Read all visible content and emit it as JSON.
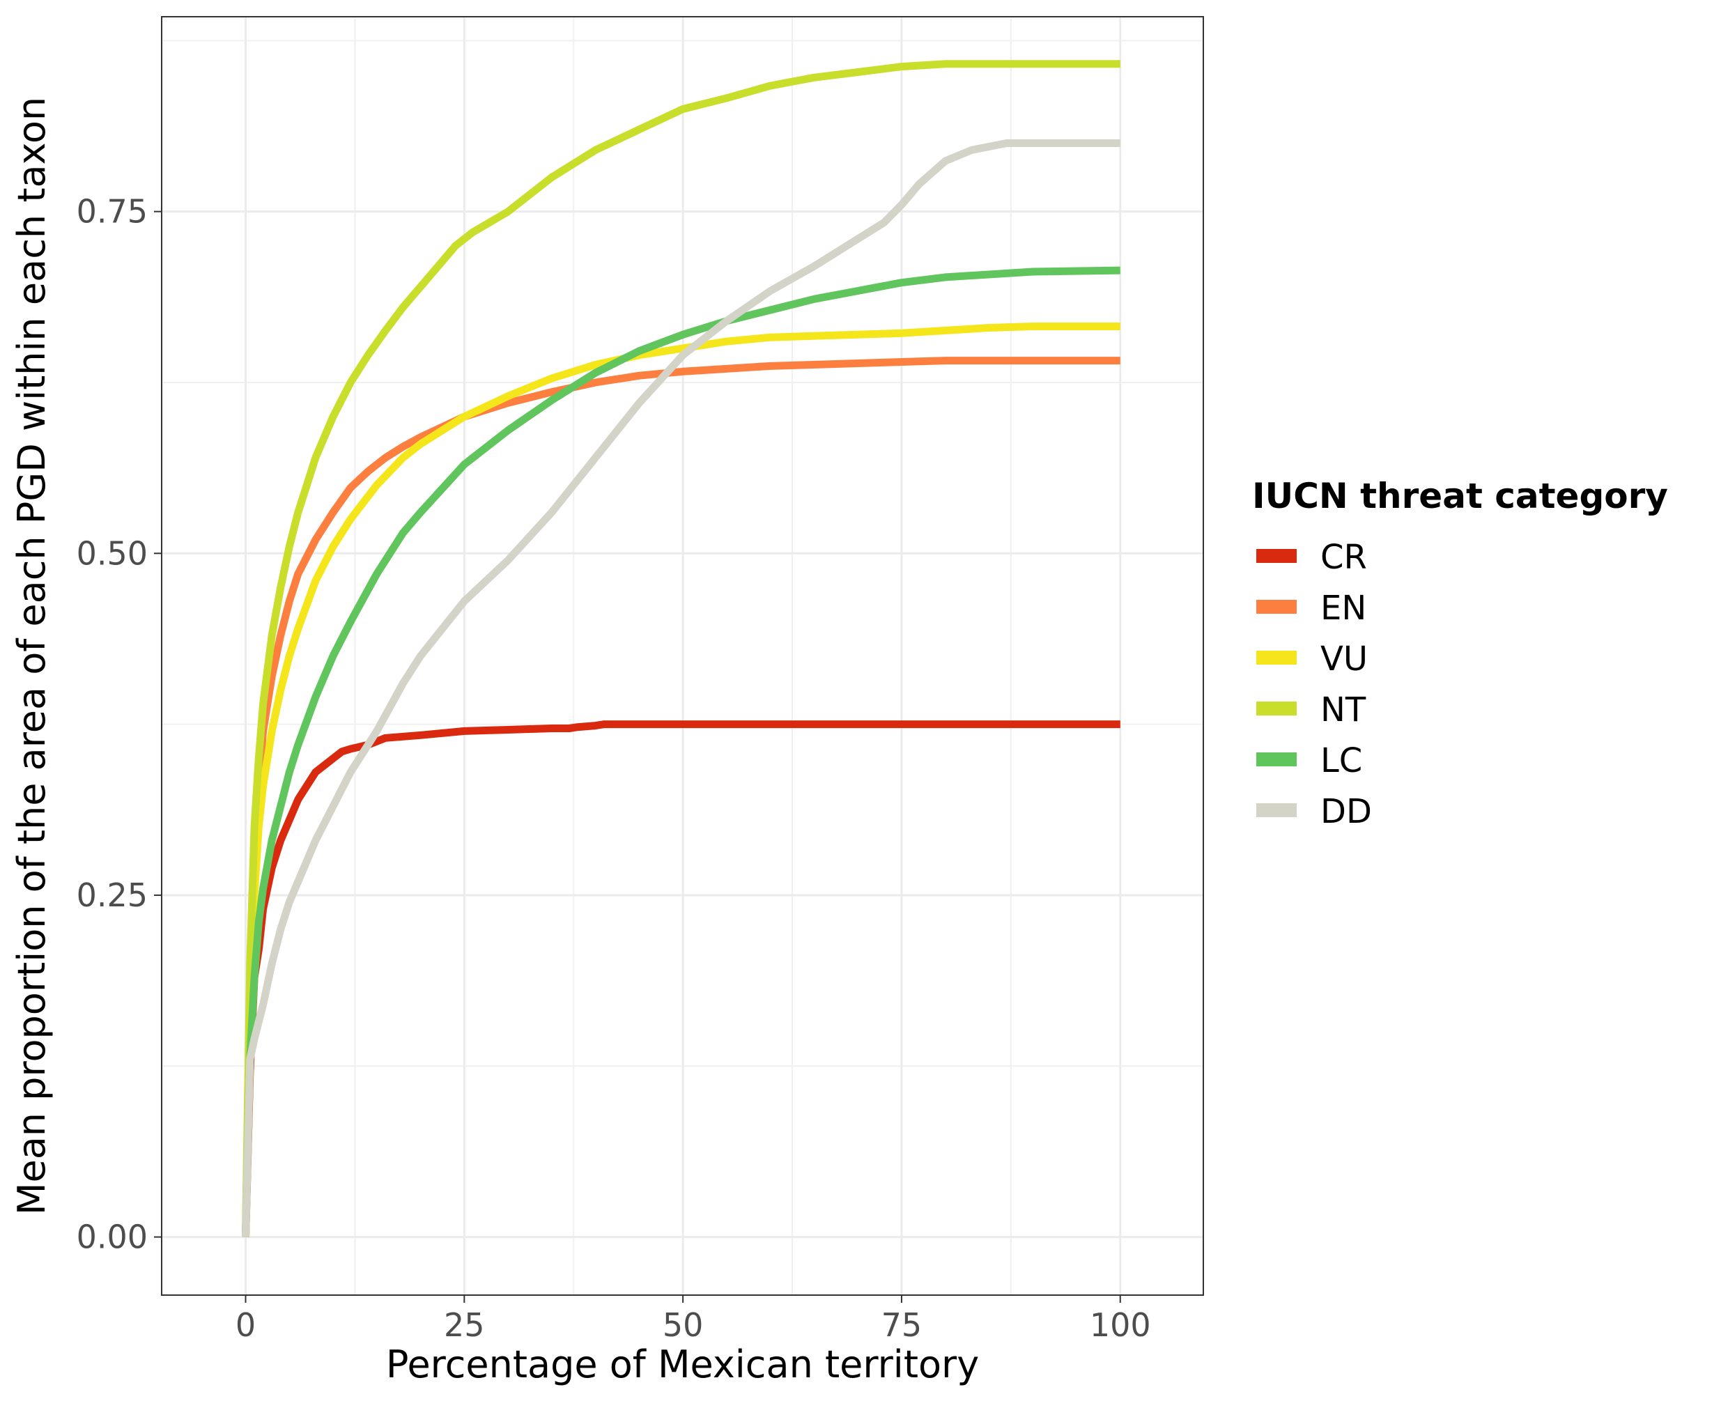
{
  "chart_data": {
    "type": "line",
    "title": "",
    "xlabel": "Percentage of Mexican territory",
    "ylabel": "Mean proportion of the area of each PGD within each taxon",
    "xlim": [
      -9.6,
      109.5
    ],
    "ylim": [
      -0.0425,
      0.8925
    ],
    "x_ticks": [
      0,
      25,
      50,
      75,
      100
    ],
    "x_tick_labels": [
      "0",
      "25",
      "50",
      "75",
      "100"
    ],
    "y_ticks": [
      0,
      0.25,
      0.5,
      0.75
    ],
    "y_tick_labels": [
      "0.00",
      "0.25",
      "0.50",
      "0.75"
    ],
    "grid": true,
    "legend": {
      "title": "IUCN threat category",
      "position": "right"
    },
    "series": [
      {
        "name": "CR",
        "color": "#D92A0F",
        "x": [
          0,
          0.5,
          1,
          1.5,
          2,
          2.5,
          3,
          4,
          5,
          6,
          7,
          8,
          9,
          10,
          11,
          12,
          14,
          16,
          20,
          25,
          30,
          35,
          37,
          38,
          40,
          41,
          50,
          60,
          75,
          100
        ],
        "y": [
          0,
          0.12,
          0.19,
          0.21,
          0.24,
          0.255,
          0.27,
          0.29,
          0.305,
          0.32,
          0.33,
          0.34,
          0.345,
          0.35,
          0.355,
          0.357,
          0.36,
          0.365,
          0.367,
          0.37,
          0.371,
          0.372,
          0.372,
          0.373,
          0.374,
          0.375,
          0.375,
          0.375,
          0.375,
          0.375
        ]
      },
      {
        "name": "EN",
        "color": "#FC7F3F",
        "x": [
          0,
          0.5,
          1,
          1.5,
          2,
          3,
          4,
          5,
          6,
          8,
          10,
          12,
          14,
          16,
          18,
          20,
          25,
          30,
          35,
          40,
          45,
          50,
          60,
          70,
          80,
          90,
          100
        ],
        "y": [
          0,
          0.17,
          0.27,
          0.33,
          0.37,
          0.41,
          0.44,
          0.465,
          0.485,
          0.51,
          0.53,
          0.548,
          0.56,
          0.57,
          0.578,
          0.585,
          0.6,
          0.61,
          0.618,
          0.625,
          0.63,
          0.633,
          0.637,
          0.639,
          0.641,
          0.641,
          0.641
        ]
      },
      {
        "name": "VU",
        "color": "#F5E61B",
        "x": [
          0,
          0.5,
          1,
          1.5,
          2,
          3,
          4,
          5,
          6,
          8,
          10,
          12,
          15,
          18,
          20,
          25,
          30,
          35,
          40,
          45,
          50,
          55,
          60,
          70,
          75,
          80,
          85,
          90,
          100
        ],
        "y": [
          0,
          0.16,
          0.25,
          0.3,
          0.33,
          0.37,
          0.4,
          0.425,
          0.445,
          0.48,
          0.505,
          0.525,
          0.55,
          0.57,
          0.58,
          0.6,
          0.615,
          0.628,
          0.638,
          0.645,
          0.65,
          0.655,
          0.658,
          0.66,
          0.661,
          0.663,
          0.665,
          0.666,
          0.666
        ]
      },
      {
        "name": "NT",
        "color": "#C8DE2A",
        "x": [
          0,
          0.5,
          1,
          1.5,
          2,
          3,
          4,
          5,
          6,
          7,
          8,
          10,
          12,
          14,
          16,
          18,
          20,
          22,
          24,
          26,
          30,
          35,
          40,
          45,
          50,
          55,
          60,
          65,
          70,
          75,
          80,
          90,
          100
        ],
        "y": [
          0,
          0.2,
          0.3,
          0.35,
          0.39,
          0.44,
          0.475,
          0.505,
          0.53,
          0.55,
          0.57,
          0.6,
          0.625,
          0.645,
          0.663,
          0.68,
          0.695,
          0.71,
          0.725,
          0.735,
          0.75,
          0.775,
          0.795,
          0.81,
          0.825,
          0.833,
          0.842,
          0.848,
          0.852,
          0.856,
          0.858,
          0.858,
          0.858
        ]
      },
      {
        "name": "LC",
        "color": "#60C55D",
        "x": [
          0,
          0.5,
          1,
          1.5,
          2,
          3,
          4,
          5,
          6,
          8,
          10,
          12,
          15,
          18,
          20,
          25,
          30,
          35,
          40,
          45,
          50,
          55,
          60,
          65,
          70,
          75,
          80,
          90,
          100
        ],
        "y": [
          0,
          0.13,
          0.19,
          0.23,
          0.255,
          0.29,
          0.315,
          0.34,
          0.36,
          0.395,
          0.425,
          0.45,
          0.485,
          0.515,
          0.53,
          0.565,
          0.59,
          0.612,
          0.632,
          0.648,
          0.66,
          0.67,
          0.678,
          0.686,
          0.692,
          0.698,
          0.702,
          0.706,
          0.707
        ]
      },
      {
        "name": "DD",
        "color": "#D3D3C8",
        "x": [
          0,
          0.5,
          1,
          2,
          3,
          4,
          5,
          6,
          8,
          10,
          12,
          15,
          18,
          20,
          25,
          30,
          35,
          40,
          45,
          50,
          55,
          60,
          65,
          70,
          73,
          75,
          77,
          80,
          83,
          87,
          90,
          100
        ],
        "y": [
          0,
          0.13,
          0.145,
          0.17,
          0.2,
          0.225,
          0.245,
          0.26,
          0.29,
          0.315,
          0.34,
          0.37,
          0.405,
          0.425,
          0.465,
          0.495,
          0.53,
          0.57,
          0.61,
          0.645,
          0.67,
          0.692,
          0.71,
          0.73,
          0.742,
          0.755,
          0.77,
          0.787,
          0.795,
          0.8,
          0.8,
          0.8
        ]
      }
    ]
  }
}
